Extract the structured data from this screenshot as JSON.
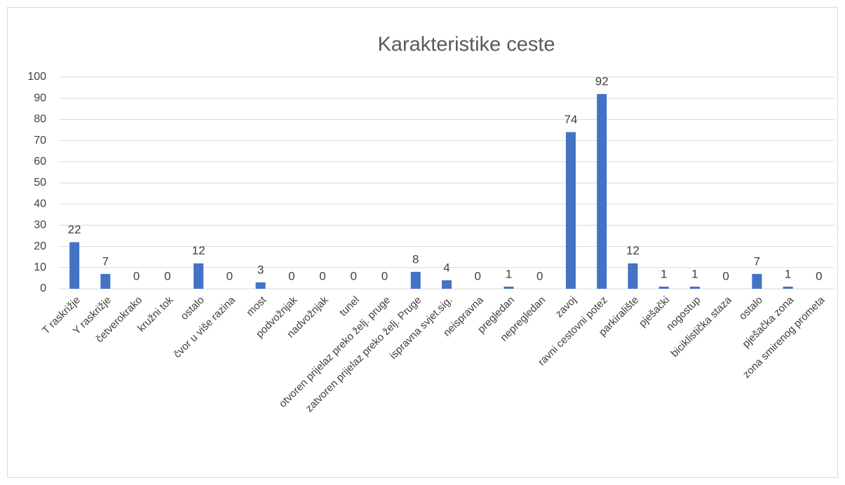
{
  "chart_data": {
    "type": "bar",
    "title": "Karakteristike ceste",
    "categories": [
      "T raskrižje",
      "Y raskrižje",
      "četverokrako",
      "kružni tok",
      "ostalo",
      "čvor u više razina",
      "most",
      "podvožnjak",
      "nadvožnjak",
      "tunel",
      "otvoren prijelaz preko želj. pruge",
      "zatvoren prijelaz preko želj. Pruge",
      "ispravna svjet.sig.",
      "neispravna",
      "pregledan",
      "nepregledan",
      "zavoj",
      "ravni cestovni potez",
      "parkiralište",
      "pješački",
      "nogostup",
      "biciklistička staza",
      "ostalo",
      "pješačka zona",
      "zona smirenog prometa"
    ],
    "values": [
      22,
      7,
      0,
      0,
      12,
      0,
      3,
      0,
      0,
      0,
      0,
      8,
      4,
      0,
      1,
      0,
      74,
      92,
      12,
      1,
      1,
      0,
      7,
      1,
      0
    ],
    "color": "#4472c4",
    "ylim": [
      0,
      100
    ],
    "yticks": [
      0,
      10,
      20,
      30,
      40,
      50,
      60,
      70,
      80,
      90,
      100
    ],
    "grid": true
  }
}
